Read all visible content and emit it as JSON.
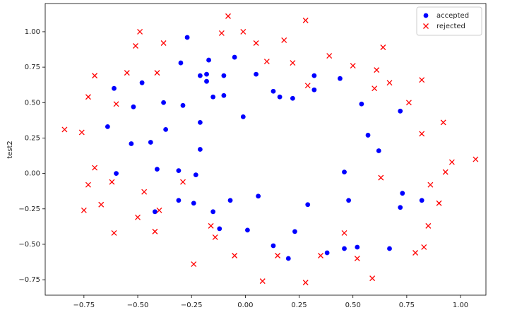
{
  "chart_data": {
    "type": "scatter",
    "y_label": "test2",
    "legend": "upper right",
    "xlim": [
      -0.93,
      1.118
    ],
    "ylim": [
      -0.859,
      1.199
    ],
    "xticks": [
      {
        "value": -0.75,
        "label": "−0.75"
      },
      {
        "value": -0.5,
        "label": "−0.50"
      },
      {
        "value": -0.25,
        "label": "−0.25"
      },
      {
        "value": 0,
        "label": "0.00"
      },
      {
        "value": 0.25,
        "label": "0.25"
      },
      {
        "value": 0.5,
        "label": "0.50"
      },
      {
        "value": 0.75,
        "label": "0.75"
      },
      {
        "value": 1,
        "label": "1.00"
      }
    ],
    "yticks": [
      {
        "value": -0.75,
        "label": "−0.75"
      },
      {
        "value": -0.5,
        "label": "−0.50"
      },
      {
        "value": -0.25,
        "label": "−0.25"
      },
      {
        "value": 0,
        "label": "0.00"
      },
      {
        "value": 0.25,
        "label": "0.25"
      },
      {
        "value": 0.5,
        "label": "0.50"
      },
      {
        "value": 0.75,
        "label": "0.75"
      },
      {
        "value": 1,
        "label": "1.00"
      }
    ],
    "series": [
      {
        "name": "accepted",
        "color": "#0000ff",
        "marker": "o",
        "x": [
          -0.27,
          -0.3,
          -0.21,
          -0.18,
          -0.17,
          -0.05,
          -0.18,
          -0.1,
          -0.15,
          -0.1,
          0.05,
          0.13,
          0.16,
          0.22,
          0.32,
          0.32,
          0.44,
          0.54,
          0.72,
          0.57,
          0.62,
          0.46,
          0.73,
          0.72,
          0.48,
          0.82,
          0.67,
          0.23,
          0.29,
          0.38,
          0.46,
          0.52,
          0.13,
          0.2,
          0.01,
          -0.12,
          -0.15,
          -0.07,
          0.06,
          -0.37,
          -0.38,
          -0.29,
          -0.21,
          -0.21,
          -0.48,
          -0.61,
          -0.52,
          -0.64,
          -0.53,
          -0.44,
          -0.6,
          -0.41,
          -0.31,
          -0.23,
          -0.24,
          -0.31,
          -0.42,
          -0.01
        ],
        "y": [
          0.96,
          0.78,
          0.69,
          0.7,
          0.8,
          0.82,
          0.65,
          0.69,
          0.54,
          0.55,
          0.7,
          0.58,
          0.54,
          0.53,
          0.59,
          0.69,
          0.67,
          0.49,
          0.44,
          0.27,
          0.16,
          0.01,
          -0.14,
          -0.24,
          -0.19,
          -0.19,
          -0.53,
          -0.41,
          -0.22,
          -0.56,
          -0.53,
          -0.52,
          -0.51,
          -0.6,
          -0.4,
          -0.39,
          -0.27,
          -0.19,
          -0.16,
          0.31,
          0.5,
          0.48,
          0.36,
          0.17,
          0.64,
          0.6,
          0.47,
          0.33,
          0.21,
          0.22,
          0.0,
          0.03,
          0.02,
          -0.01,
          -0.21,
          -0.19,
          -0.27,
          0.4
        ]
      },
      {
        "name": "rejected",
        "color": "#ff0000",
        "marker": "x",
        "x": [
          -0.08,
          -0.01,
          -0.11,
          0.05,
          -0.49,
          -0.51,
          -0.38,
          -0.41,
          -0.55,
          -0.7,
          -0.73,
          -0.6,
          -0.84,
          -0.76,
          -0.7,
          -0.73,
          -0.62,
          -0.67,
          -0.75,
          -0.47,
          -0.4,
          -0.5,
          -0.61,
          -0.42,
          -0.29,
          -0.16,
          -0.14,
          -0.24,
          -0.05,
          0.08,
          0.15,
          0.28,
          0.35,
          0.46,
          0.52,
          0.59,
          0.79,
          0.83,
          0.85,
          0.9,
          0.86,
          0.93,
          0.96,
          1.07,
          0.92,
          0.82,
          0.76,
          0.82,
          0.67,
          0.6,
          0.61,
          0.64,
          0.5,
          0.39,
          0.28,
          0.18,
          0.22,
          0.1,
          0.29,
          0.63
        ],
        "y": [
          1.11,
          1.0,
          0.99,
          0.92,
          1.0,
          0.9,
          0.92,
          0.71,
          0.71,
          0.69,
          0.54,
          0.49,
          0.31,
          0.29,
          0.04,
          -0.08,
          -0.06,
          -0.22,
          -0.26,
          -0.13,
          -0.26,
          -0.31,
          -0.42,
          -0.41,
          -0.06,
          -0.37,
          -0.45,
          -0.64,
          -0.58,
          -0.76,
          -0.58,
          -0.77,
          -0.58,
          -0.42,
          -0.6,
          -0.74,
          -0.56,
          -0.52,
          -0.37,
          -0.21,
          -0.08,
          0.01,
          0.08,
          0.1,
          0.36,
          0.28,
          0.5,
          0.66,
          0.64,
          0.6,
          0.73,
          0.89,
          0.76,
          0.83,
          1.08,
          0.94,
          0.78,
          0.79,
          0.62,
          -0.03
        ]
      }
    ]
  }
}
